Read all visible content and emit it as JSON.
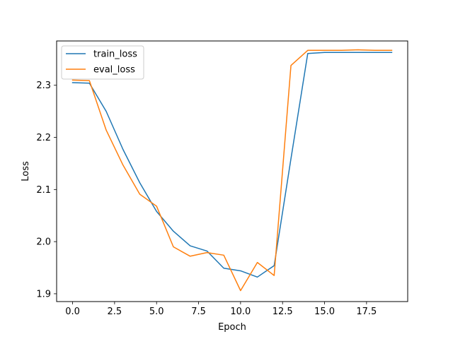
{
  "chart_data": {
    "type": "line",
    "title": "",
    "xlabel": "Epoch",
    "ylabel": "Loss",
    "xlim": [
      -0.95,
      19.95
    ],
    "ylim": [
      1.885,
      2.385
    ],
    "xticks": [
      0.0,
      2.5,
      5.0,
      7.5,
      10.0,
      12.5,
      15.0,
      17.5
    ],
    "xtick_labels": [
      "0.0",
      "2.5",
      "5.0",
      "7.5",
      "10.0",
      "12.5",
      "15.0",
      "17.5"
    ],
    "yticks": [
      1.9,
      2.0,
      2.1,
      2.2,
      2.3
    ],
    "ytick_labels": [
      "1.9",
      "2.0",
      "2.1",
      "2.2",
      "2.3"
    ],
    "grid": false,
    "legend_position": "top-left",
    "x": [
      0,
      1,
      2,
      3,
      4,
      5,
      6,
      7,
      8,
      9,
      10,
      11,
      12,
      13,
      14,
      15,
      16,
      17,
      18,
      19
    ],
    "series": [
      {
        "name": "train_loss",
        "color": "#1f77b4",
        "values": [
          2.305,
          2.304,
          2.25,
          2.177,
          2.113,
          2.058,
          2.02,
          1.992,
          1.982,
          1.949,
          1.944,
          1.932,
          1.954,
          2.159,
          2.361,
          2.363,
          2.363,
          2.363,
          2.363,
          2.363
        ]
      },
      {
        "name": "eval_loss",
        "color": "#ff7f0e",
        "values": [
          2.31,
          2.309,
          2.214,
          2.147,
          2.091,
          2.068,
          1.99,
          1.972,
          1.979,
          1.974,
          1.906,
          1.96,
          1.935,
          2.338,
          2.367,
          2.367,
          2.367,
          2.368,
          2.367,
          2.367
        ]
      }
    ]
  }
}
